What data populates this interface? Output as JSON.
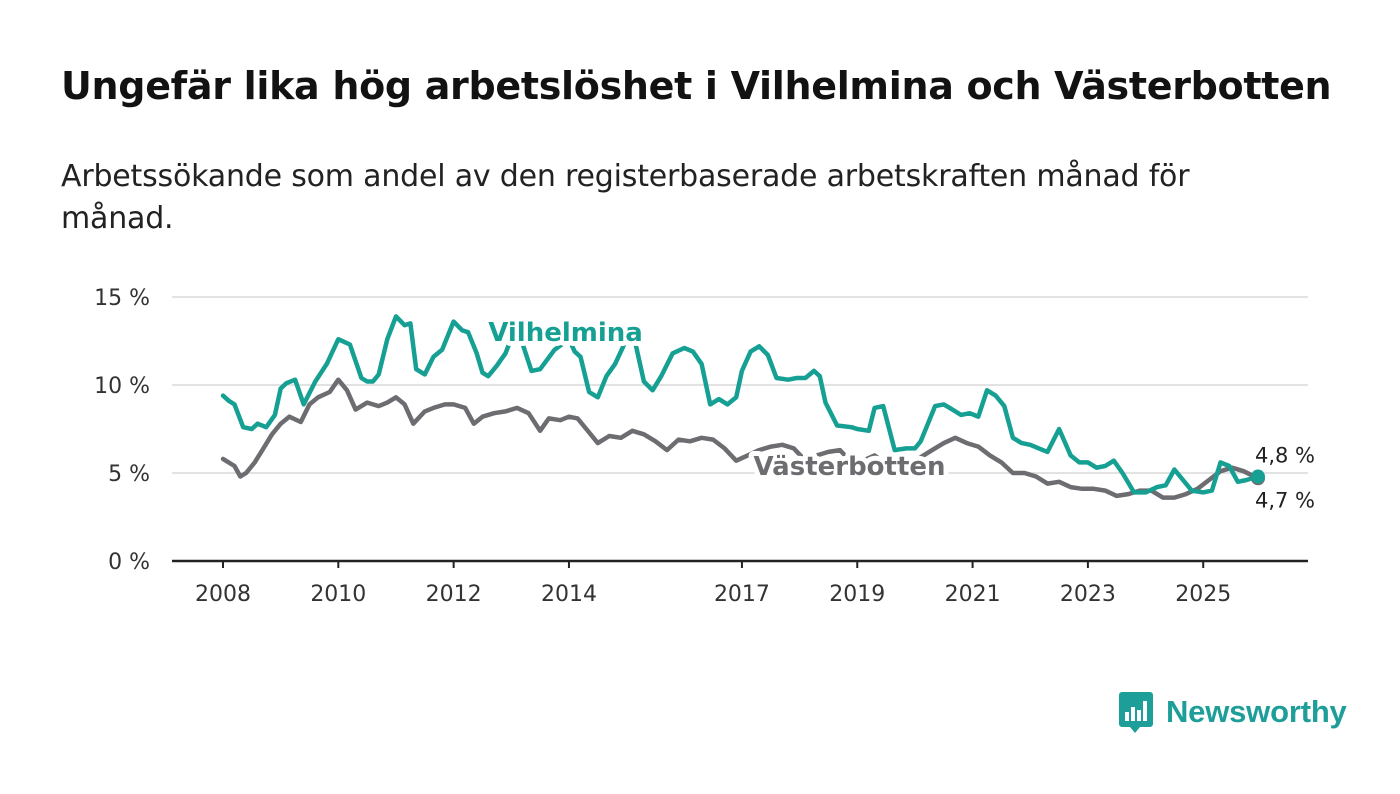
{
  "title": "Ungefär lika hög arbetslöshet i Vilhelmina och Västerbotten",
  "subtitle": "Arbetssökande som andel av den registerbaserade arbetskraften månad för månad.",
  "brand": {
    "name": "Newsworthy",
    "color": "#1e9e98",
    "icon": "newsworthy-bar-chart-icon"
  },
  "chart_data": {
    "type": "line",
    "title": "Ungefär lika hög arbetslöshet i Vilhelmina och Västerbotten",
    "xlabel": "",
    "ylabel": "",
    "x_range": [
      2008.0,
      2025.95
    ],
    "ylim": [
      0,
      15
    ],
    "y_ticks": [
      0,
      5,
      10,
      15
    ],
    "y_tick_labels": [
      "0 %",
      "5 %",
      "10 %",
      "15 %"
    ],
    "x_ticks": [
      2008,
      2010,
      2012,
      2014,
      2017,
      2019,
      2021,
      2023,
      2025
    ],
    "grid": true,
    "series": [
      {
        "name": "Västerbotten",
        "label": "Västerbotten",
        "color": "#6d6c70",
        "end_label": "4,7 %",
        "x": [
          2008.0,
          2008.2,
          2008.3,
          2008.4,
          2008.55,
          2008.7,
          2008.85,
          2009.0,
          2009.15,
          2009.35,
          2009.5,
          2009.65,
          2009.85,
          2010.0,
          2010.15,
          2010.3,
          2010.5,
          2010.7,
          2010.85,
          2011.0,
          2011.15,
          2011.3,
          2011.5,
          2011.65,
          2011.85,
          2012.0,
          2012.2,
          2012.35,
          2012.5,
          2012.7,
          2012.9,
          2013.1,
          2013.3,
          2013.5,
          2013.65,
          2013.85,
          2014.0,
          2014.15,
          2014.3,
          2014.5,
          2014.7,
          2014.9,
          2015.1,
          2015.3,
          2015.5,
          2015.7,
          2015.9,
          2016.1,
          2016.3,
          2016.5,
          2016.7,
          2016.9,
          2017.1,
          2017.3,
          2017.5,
          2017.7,
          2017.9,
          2018.1,
          2018.3,
          2018.5,
          2018.7,
          2018.9,
          2019.1,
          2019.3,
          2019.5,
          2019.7,
          2019.9,
          2020.1,
          2020.3,
          2020.5,
          2020.7,
          2020.9,
          2021.1,
          2021.3,
          2021.5,
          2021.7,
          2021.9,
          2022.1,
          2022.3,
          2022.5,
          2022.7,
          2022.9,
          2023.1,
          2023.3,
          2023.5,
          2023.7,
          2023.9,
          2024.1,
          2024.3,
          2024.5,
          2024.7,
          2024.9,
          2025.1,
          2025.3,
          2025.5,
          2025.7,
          2025.95
        ],
        "y": [
          5.8,
          5.4,
          4.8,
          5.0,
          5.6,
          6.4,
          7.2,
          7.8,
          8.2,
          7.9,
          8.9,
          9.3,
          9.6,
          10.3,
          9.7,
          8.6,
          9.0,
          8.8,
          9.0,
          9.3,
          8.9,
          7.8,
          8.5,
          8.7,
          8.9,
          8.9,
          8.7,
          7.8,
          8.2,
          8.4,
          8.5,
          8.7,
          8.4,
          7.4,
          8.1,
          8.0,
          8.2,
          8.1,
          7.5,
          6.7,
          7.1,
          7.0,
          7.4,
          7.2,
          6.8,
          6.3,
          6.9,
          6.8,
          7.0,
          6.9,
          6.4,
          5.7,
          6.0,
          6.3,
          6.5,
          6.6,
          6.4,
          5.7,
          6.0,
          6.2,
          6.3,
          5.6,
          5.7,
          6.0,
          5.5,
          5.2,
          5.5,
          5.9,
          6.3,
          6.7,
          7.0,
          6.7,
          6.5,
          6.0,
          5.6,
          5.0,
          5.0,
          4.8,
          4.4,
          4.5,
          4.2,
          4.1,
          4.1,
          4.0,
          3.7,
          3.8,
          4.0,
          4.0,
          3.6,
          3.6,
          3.8,
          4.1,
          4.6,
          5.1,
          5.3,
          5.1,
          4.7
        ]
      },
      {
        "name": "Vilhelmina",
        "label": "Vilhelmina",
        "color": "#16a093",
        "end_label": "4,8 %",
        "x": [
          2008.0,
          2008.1,
          2008.2,
          2008.35,
          2008.5,
          2008.6,
          2008.75,
          2008.9,
          2009.0,
          2009.1,
          2009.25,
          2009.4,
          2009.6,
          2009.8,
          2010.0,
          2010.2,
          2010.4,
          2010.5,
          2010.6,
          2010.7,
          2010.85,
          2011.0,
          2011.15,
          2011.25,
          2011.35,
          2011.5,
          2011.65,
          2011.8,
          2012.0,
          2012.15,
          2012.25,
          2012.4,
          2012.5,
          2012.6,
          2012.75,
          2012.9,
          2013.1,
          2013.2,
          2013.35,
          2013.5,
          2013.75,
          2014.0,
          2014.1,
          2014.2,
          2014.35,
          2014.5,
          2014.65,
          2014.8,
          2015.0,
          2015.15,
          2015.3,
          2015.45,
          2015.6,
          2015.8,
          2016.0,
          2016.15,
          2016.3,
          2016.45,
          2016.6,
          2016.75,
          2016.9,
          2017.0,
          2017.15,
          2017.3,
          2017.45,
          2017.6,
          2017.8,
          2017.95,
          2018.1,
          2018.25,
          2018.35,
          2018.45,
          2018.65,
          2018.9,
          2019.0,
          2019.2,
          2019.3,
          2019.45,
          2019.65,
          2019.85,
          2020.0,
          2020.1,
          2020.2,
          2020.35,
          2020.5,
          2020.65,
          2020.8,
          2020.95,
          2021.1,
          2021.25,
          2021.4,
          2021.55,
          2021.7,
          2021.85,
          2022.0,
          2022.15,
          2022.3,
          2022.5,
          2022.7,
          2022.85,
          2023.0,
          2023.15,
          2023.3,
          2023.45,
          2023.6,
          2023.8,
          2024.0,
          2024.2,
          2024.35,
          2024.5,
          2024.65,
          2024.8,
          2025.0,
          2025.15,
          2025.3,
          2025.45,
          2025.6,
          2025.75,
          2025.95
        ],
        "y": [
          9.4,
          9.1,
          8.9,
          7.6,
          7.5,
          7.8,
          7.6,
          8.3,
          9.8,
          10.1,
          10.3,
          8.9,
          10.2,
          11.2,
          12.6,
          12.3,
          10.4,
          10.2,
          10.2,
          10.6,
          12.6,
          13.9,
          13.4,
          13.5,
          10.9,
          10.6,
          11.6,
          12.0,
          13.6,
          13.1,
          13.0,
          11.8,
          10.7,
          10.5,
          11.1,
          11.8,
          13.5,
          12.3,
          10.8,
          10.9,
          12.0,
          12.6,
          11.9,
          11.6,
          9.6,
          9.3,
          10.5,
          11.2,
          12.6,
          12.4,
          10.2,
          9.7,
          10.5,
          11.8,
          12.1,
          11.9,
          11.2,
          8.9,
          9.2,
          8.9,
          9.3,
          10.8,
          11.9,
          12.2,
          11.7,
          10.4,
          10.3,
          10.4,
          10.4,
          10.8,
          10.5,
          9.0,
          7.7,
          7.6,
          7.5,
          7.4,
          8.7,
          8.8,
          6.3,
          6.4,
          6.4,
          6.8,
          7.6,
          8.8,
          8.9,
          8.6,
          8.3,
          8.4,
          8.2,
          9.7,
          9.4,
          8.8,
          7.0,
          6.7,
          6.6,
          6.4,
          6.2,
          7.5,
          6.0,
          5.6,
          5.6,
          5.3,
          5.4,
          5.7,
          5.0,
          3.9,
          3.9,
          4.2,
          4.3,
          5.2,
          4.6,
          4.0,
          3.9,
          4.0,
          5.6,
          5.4,
          4.5,
          4.6,
          4.8
        ]
      }
    ]
  }
}
